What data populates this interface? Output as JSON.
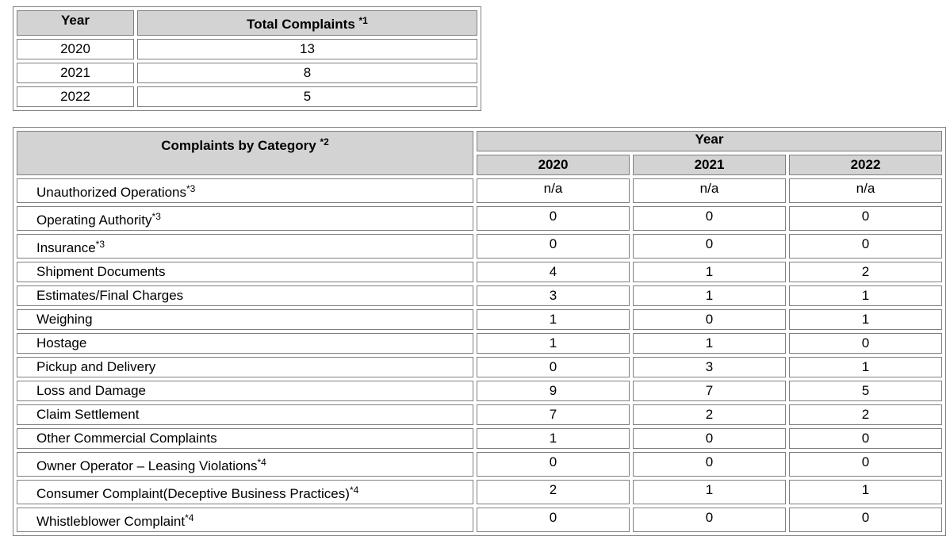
{
  "totals_table": {
    "headers": {
      "year": "Year",
      "total": "Total Complaints",
      "total_note": "*1"
    },
    "rows": [
      {
        "year": "2020",
        "total": "13"
      },
      {
        "year": "2021",
        "total": "8"
      },
      {
        "year": "2022",
        "total": "5"
      }
    ]
  },
  "category_table": {
    "headers": {
      "category": "Complaints by Category",
      "category_note": "*2",
      "year_group": "Year",
      "years": [
        "2020",
        "2021",
        "2022"
      ]
    },
    "rows": [
      {
        "category": "Unauthorized Operations",
        "note": "*3",
        "values": [
          "n/a",
          "n/a",
          "n/a"
        ]
      },
      {
        "category": "Operating Authority",
        "note": "*3",
        "values": [
          "0",
          "0",
          "0"
        ]
      },
      {
        "category": "Insurance",
        "note": "*3",
        "values": [
          "0",
          "0",
          "0"
        ]
      },
      {
        "category": "Shipment Documents",
        "note": "",
        "values": [
          "4",
          "1",
          "2"
        ]
      },
      {
        "category": "Estimates/Final Charges",
        "note": "",
        "values": [
          "3",
          "1",
          "1"
        ]
      },
      {
        "category": "Weighing",
        "note": "",
        "values": [
          "1",
          "0",
          "1"
        ]
      },
      {
        "category": "Hostage",
        "note": "",
        "values": [
          "1",
          "1",
          "0"
        ]
      },
      {
        "category": "Pickup and Delivery",
        "note": "",
        "values": [
          "0",
          "3",
          "1"
        ]
      },
      {
        "category": "Loss and Damage",
        "note": "",
        "values": [
          "9",
          "7",
          "5"
        ]
      },
      {
        "category": "Claim Settlement",
        "note": "",
        "values": [
          "7",
          "2",
          "2"
        ]
      },
      {
        "category": "Other Commercial Complaints",
        "note": "",
        "values": [
          "1",
          "0",
          "0"
        ]
      },
      {
        "category": "Owner Operator – Leasing Violations",
        "note": "*4",
        "values": [
          "0",
          "0",
          "0"
        ]
      },
      {
        "category": "Consumer Complaint(Deceptive Business Practices)",
        "note": "*4",
        "values": [
          "2",
          "1",
          "1"
        ]
      },
      {
        "category": "Whistleblower Complaint",
        "note": "*4",
        "values": [
          "0",
          "0",
          "0"
        ]
      }
    ]
  }
}
